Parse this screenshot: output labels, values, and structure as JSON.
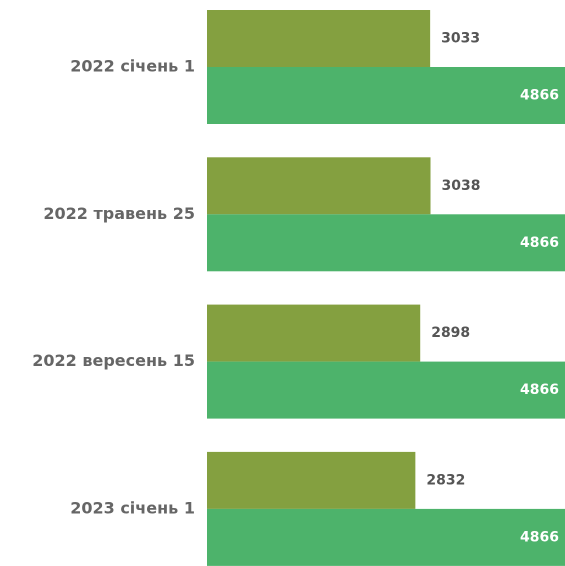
{
  "chart_data": {
    "type": "barh",
    "categories": [
      "2022 січень 1",
      "2022 травень 25",
      "2022 вересень 15",
      "2023 січень 1"
    ],
    "series": [
      {
        "color": "#84a040",
        "values": [
          3033,
          3038,
          2898,
          2832
        ]
      },
      {
        "color": "#4db36b",
        "values": [
          4866,
          4866,
          4866,
          4866
        ]
      }
    ]
  }
}
